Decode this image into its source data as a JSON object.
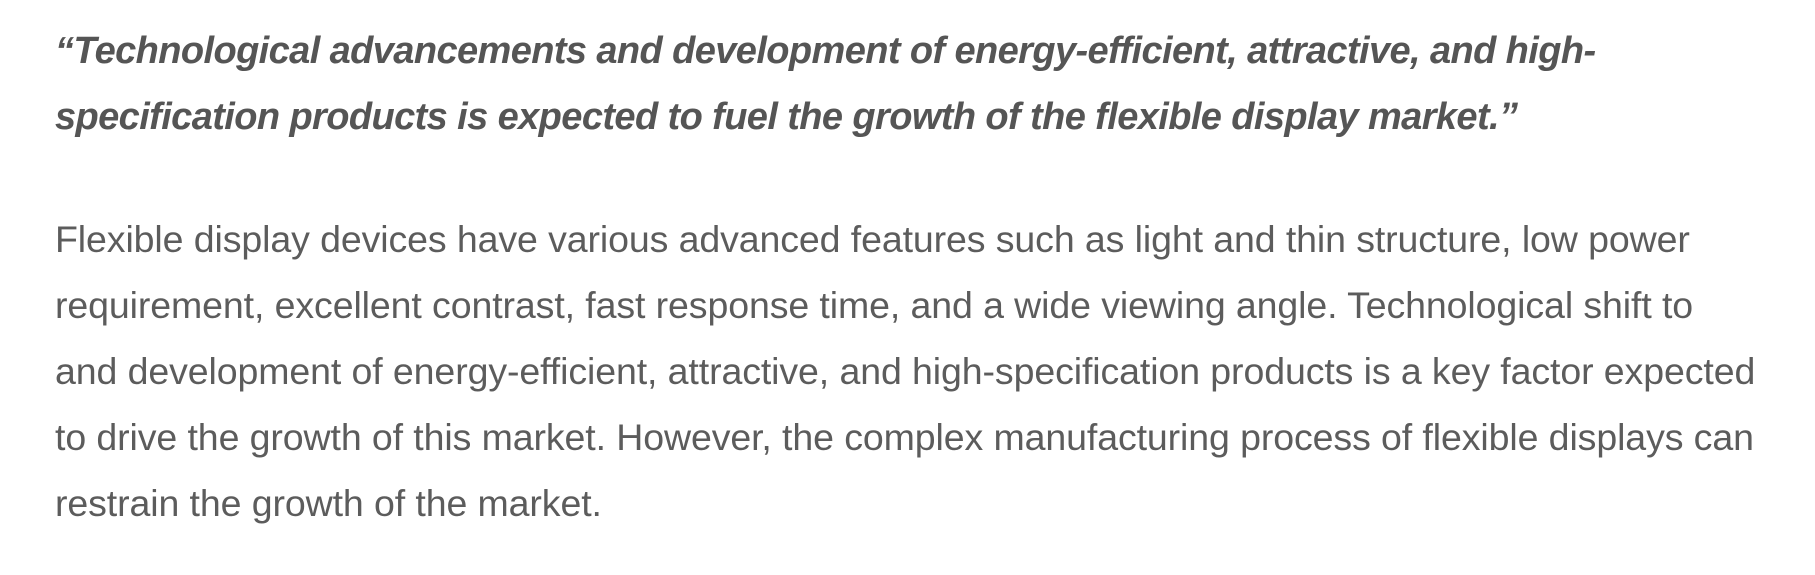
{
  "article": {
    "pull_quote": "“Technological advancements and development of energy-efficient, attractive, and high-specification products is expected to fuel the growth of the flexible display market.”",
    "paragraph": "Flexible display devices have various advanced features such as light and thin structure, low power requirement, excellent contrast, fast response time, and a wide viewing angle. Technological shift to and development of energy-efficient, attractive, and high-specification products is a key factor expected to drive the growth of this market. However, the complex manufacturing process of flexible displays can restrain the growth of the market."
  }
}
